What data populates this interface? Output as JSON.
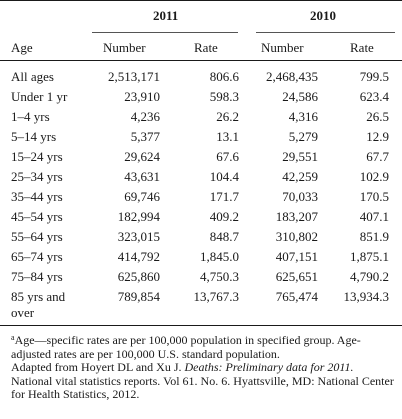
{
  "header": {
    "year_a": "2011",
    "year_b": "2010",
    "col_age": "Age",
    "col_number_a": "Number",
    "col_rate_a": "Rate",
    "col_number_b": "Number",
    "col_rate_b": "Rate"
  },
  "rows": [
    {
      "age": "All ages",
      "n2011": "2,513,171",
      "r2011": "806.6",
      "n2010": "2,468,435",
      "r2010": "799.5"
    },
    {
      "age": "Under 1 yr",
      "n2011": "23,910",
      "r2011": "598.3",
      "n2010": "24,586",
      "r2010": "623.4"
    },
    {
      "age": "1–4 yrs",
      "n2011": "4,236",
      "r2011": "26.2",
      "n2010": "4,316",
      "r2010": "26.5"
    },
    {
      "age": "5–14 yrs",
      "n2011": "5,377",
      "r2011": "13.1",
      "n2010": "5,279",
      "r2010": "12.9"
    },
    {
      "age": "15–24 yrs",
      "n2011": "29,624",
      "r2011": "67.6",
      "n2010": "29,551",
      "r2010": "67.7"
    },
    {
      "age": "25–34 yrs",
      "n2011": "43,631",
      "r2011": "104.4",
      "n2010": "42,259",
      "r2010": "102.9"
    },
    {
      "age": "35–44 yrs",
      "n2011": "69,746",
      "r2011": "171.7",
      "n2010": "70,033",
      "r2010": "170.5"
    },
    {
      "age": "45–54 yrs",
      "n2011": "182,994",
      "r2011": "409.2",
      "n2010": "183,207",
      "r2010": "407.1"
    },
    {
      "age": "55–64 yrs",
      "n2011": "323,015",
      "r2011": "848.7",
      "n2010": "310,802",
      "r2010": "851.9"
    },
    {
      "age": "65–74 yrs",
      "n2011": "414,792",
      "r2011": "1,845.0",
      "n2010": "407,151",
      "r2010": "1,875.1"
    },
    {
      "age": "75–84 yrs",
      "n2011": "625,860",
      "r2011": "4,750.3",
      "n2010": "625,651",
      "r2010": "4,790.2"
    },
    {
      "age": "85 yrs and",
      "age_line2": "over",
      "n2011": "789,854",
      "r2011": "13,767.3",
      "n2010": "765,474",
      "r2010": "13,934.3"
    }
  ],
  "notes": {
    "footnote_mark": "a",
    "footnote": "Age—specific rates are per 100,000 population in specified group. Age-adjusted rates are per 100,000 U.S. standard population.",
    "source_pre": "Adapted from Hoyert DL and Xu J. ",
    "source_title": "Deaths: Preliminary data for 2011.",
    "source_post": " National vital statistics reports. Vol 61. No. 6. Hyattsville, MD: National Center for Health Statistics, 2012."
  }
}
